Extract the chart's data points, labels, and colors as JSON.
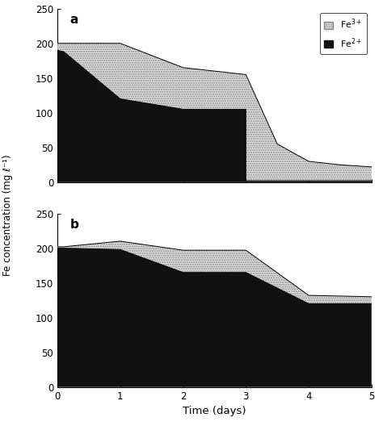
{
  "panel_a": {
    "x": [
      0,
      0.1,
      1.0,
      1.0,
      2.0,
      2.0,
      3.0,
      3.0,
      3.5,
      4.0,
      4.5,
      5.0
    ],
    "fe2": [
      190,
      188,
      120,
      120,
      105,
      105,
      105,
      2,
      2,
      2,
      2,
      2
    ],
    "total": [
      200,
      200,
      200,
      200,
      165,
      165,
      155,
      155,
      55,
      30,
      25,
      22
    ]
  },
  "panel_b": {
    "x": [
      0,
      0.1,
      1.0,
      1.0,
      2.0,
      2.0,
      3.0,
      3.0,
      4.0,
      4.0,
      5.0
    ],
    "fe2": [
      200,
      200,
      198,
      198,
      165,
      165,
      165,
      165,
      120,
      120,
      120
    ],
    "total": [
      202,
      202,
      210,
      210,
      197,
      197,
      197,
      197,
      132,
      132,
      130
    ]
  },
  "ylim": [
    0,
    250
  ],
  "yticks": [
    0,
    50,
    100,
    150,
    200,
    250
  ],
  "xlim": [
    0,
    5
  ],
  "xticks": [
    0,
    1,
    2,
    3,
    4,
    5
  ],
  "xlabel": "Time (days)",
  "ylabel": "Fe concentration (mg ℓ⁻¹)",
  "label_fe3": "Fe$^{3+}$",
  "label_fe2": "Fe$^{2+}$",
  "panel_labels": [
    "a",
    "b"
  ]
}
